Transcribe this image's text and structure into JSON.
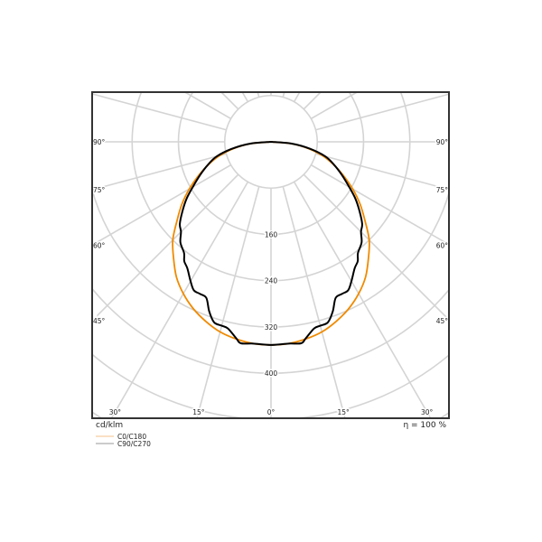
{
  "chart_data": {
    "type": "polar",
    "unit_label": "cd/klm",
    "efficiency_label": "η = 100 %",
    "radial_ticks": [
      80,
      160,
      240,
      320,
      400,
      480,
      560,
      640
    ],
    "radial_tick_labels": [
      "160",
      "240",
      "320",
      "400"
    ],
    "angle_step_deg": 15,
    "angle_labels_bottom": [
      "30°",
      "15°",
      "0°",
      "15°",
      "30°"
    ],
    "angle_labels_side": [
      "90°",
      "75°",
      "60°",
      "45°"
    ],
    "grid": true,
    "legend_placement": "bottom-left",
    "series": [
      {
        "name": "C0/C180",
        "color": "#f08a00",
        "legend_color": "#f5c28a",
        "points": [
          [
            0,
            351
          ],
          [
            5,
            350
          ],
          [
            10,
            346
          ],
          [
            15,
            340
          ],
          [
            20,
            330
          ],
          [
            25,
            318
          ],
          [
            30,
            303
          ],
          [
            35,
            285
          ],
          [
            40,
            262
          ],
          [
            45,
            240
          ],
          [
            50,
            212
          ],
          [
            55,
            188
          ],
          [
            60,
            163
          ],
          [
            65,
            138
          ],
          [
            70,
            115
          ],
          [
            75,
            92
          ],
          [
            80,
            65
          ],
          [
            85,
            35
          ],
          [
            90,
            0
          ]
        ]
      },
      {
        "name": "C90/C270",
        "color": "#000000",
        "legend_color": "#999999",
        "points": [
          [
            0,
            351
          ],
          [
            5,
            350
          ],
          [
            8.5,
            352
          ],
          [
            10,
            345
          ],
          [
            13,
            331
          ],
          [
            15,
            329
          ],
          [
            17.5,
            327
          ],
          [
            20,
            312
          ],
          [
            22.5,
            292
          ],
          [
            25,
            290
          ],
          [
            27.5,
            289
          ],
          [
            30,
            278
          ],
          [
            33.5,
            262
          ],
          [
            36,
            255
          ],
          [
            38,
            244
          ],
          [
            42,
            234
          ],
          [
            45,
            220
          ],
          [
            48,
            212
          ],
          [
            52,
            194
          ],
          [
            56,
            176
          ],
          [
            60,
            156
          ],
          [
            65,
            135
          ],
          [
            70,
            116
          ],
          [
            75,
            97
          ],
          [
            80,
            68
          ],
          [
            85,
            36
          ],
          [
            90,
            0
          ]
        ]
      }
    ]
  }
}
